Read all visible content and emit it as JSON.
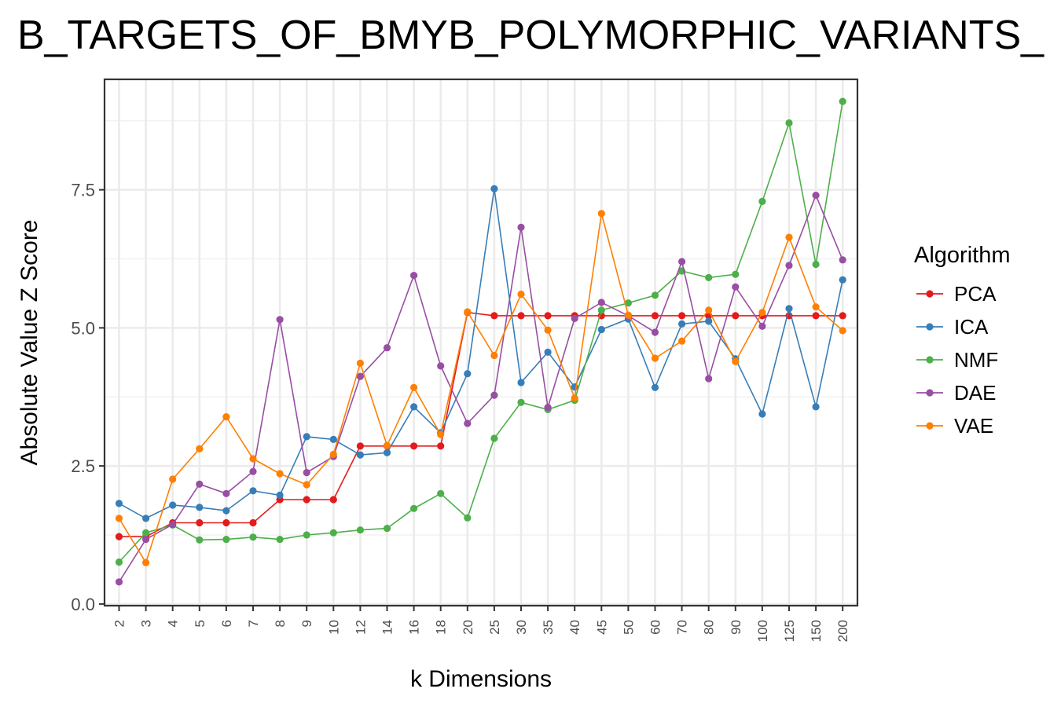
{
  "chart_data": {
    "type": "line",
    "title": "B_TARGETS_OF_BMYB_POLYMORPHIC_VARIANTS_",
    "xlabel": "k Dimensions",
    "ylabel": "Absolute Value Z Score",
    "categories": [
      "2",
      "3",
      "4",
      "5",
      "6",
      "7",
      "8",
      "9",
      "10",
      "12",
      "14",
      "16",
      "18",
      "20",
      "25",
      "30",
      "35",
      "40",
      "45",
      "50",
      "60",
      "70",
      "80",
      "90",
      "100",
      "125",
      "150",
      "200"
    ],
    "ylim": [
      0,
      9.0
    ],
    "yticks": [
      0,
      2.5,
      5,
      7.5
    ],
    "ytick_labels": [
      "0.0",
      "2.5",
      "5.0",
      "7.5"
    ],
    "grid": true,
    "legend": {
      "title": "Algorithm",
      "position": "right"
    },
    "series": [
      {
        "name": "PCA",
        "color": "#e41a1c",
        "values": [
          1.22,
          1.22,
          1.47,
          1.47,
          1.47,
          1.47,
          1.89,
          1.89,
          1.89,
          2.86,
          2.86,
          2.86,
          2.86,
          5.28,
          5.22,
          5.22,
          5.22,
          5.22,
          5.22,
          5.22,
          5.22,
          5.22,
          5.22,
          5.22,
          5.22,
          5.22,
          5.22,
          5.22
        ]
      },
      {
        "name": "ICA",
        "color": "#377eb8",
        "values": [
          1.82,
          1.55,
          1.79,
          1.75,
          1.69,
          2.05,
          1.97,
          3.03,
          2.98,
          2.7,
          2.74,
          3.57,
          3.1,
          4.17,
          7.52,
          4.01,
          4.56,
          3.93,
          4.97,
          5.16,
          3.92,
          5.07,
          5.12,
          4.44,
          3.44,
          5.35,
          3.57,
          5.87
        ]
      },
      {
        "name": "NMF",
        "color": "#4daf4a",
        "values": [
          0.76,
          1.29,
          1.43,
          1.16,
          1.17,
          1.21,
          1.17,
          1.25,
          1.29,
          1.34,
          1.37,
          1.73,
          2.0,
          1.56,
          3.0,
          3.65,
          3.52,
          3.69,
          5.32,
          5.45,
          5.59,
          6.03,
          5.91,
          5.97,
          7.29,
          8.71,
          6.15,
          9.1
        ]
      },
      {
        "name": "DAE",
        "color": "#984ea3",
        "values": [
          0.4,
          1.17,
          1.44,
          2.17,
          2.0,
          2.4,
          5.15,
          2.38,
          2.67,
          4.12,
          4.64,
          5.95,
          4.31,
          3.27,
          3.78,
          6.82,
          3.56,
          5.17,
          5.46,
          5.22,
          4.92,
          6.2,
          4.08,
          5.74,
          5.03,
          6.13,
          7.4,
          6.23
        ]
      },
      {
        "name": "VAE",
        "color": "#ff7f00",
        "values": [
          1.55,
          0.75,
          2.26,
          2.81,
          3.39,
          2.63,
          2.36,
          2.16,
          2.71,
          4.36,
          2.87,
          3.92,
          3.07,
          5.29,
          4.5,
          5.61,
          4.96,
          3.73,
          7.07,
          5.23,
          4.45,
          4.76,
          5.32,
          4.39,
          5.28,
          6.64,
          5.38,
          4.95
        ]
      }
    ]
  }
}
